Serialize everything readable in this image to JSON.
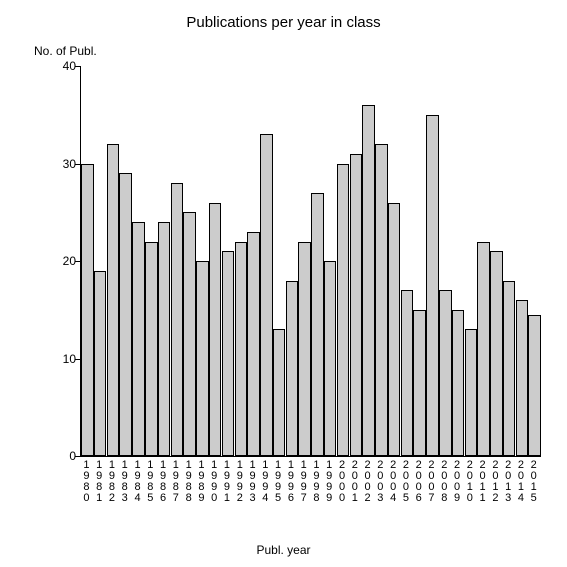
{
  "chart": {
    "type": "bar",
    "title": "Publications per year in class",
    "title_fontsize": 15,
    "ylabel_top": "No. of Publ.",
    "xlabel_bottom": "Publ. year",
    "label_fontsize": 12,
    "background_color": "#ffffff",
    "bar_fill": "#cccccc",
    "bar_border": "#000000",
    "axis_color": "#000000",
    "ylim": [
      0,
      40
    ],
    "yticks": [
      0,
      10,
      20,
      30,
      40
    ],
    "categories": [
      "1980",
      "1981",
      "1982",
      "1983",
      "1984",
      "1985",
      "1986",
      "1987",
      "1988",
      "1989",
      "1990",
      "1991",
      "1992",
      "1993",
      "1994",
      "1995",
      "1996",
      "1997",
      "1998",
      "1999",
      "2000",
      "2001",
      "2002",
      "2003",
      "2004",
      "2005",
      "2006",
      "2007",
      "2008",
      "2009",
      "2010",
      "2011",
      "2012",
      "2013",
      "2014",
      "2015"
    ],
    "values": [
      30,
      19,
      32,
      29,
      24,
      22,
      24,
      28,
      25,
      20,
      26,
      21,
      22,
      23,
      33,
      13,
      18,
      22,
      27,
      20,
      30,
      31,
      36,
      32,
      26,
      17,
      15,
      35,
      17,
      15,
      13,
      22,
      21,
      18,
      16,
      14.5
    ]
  }
}
